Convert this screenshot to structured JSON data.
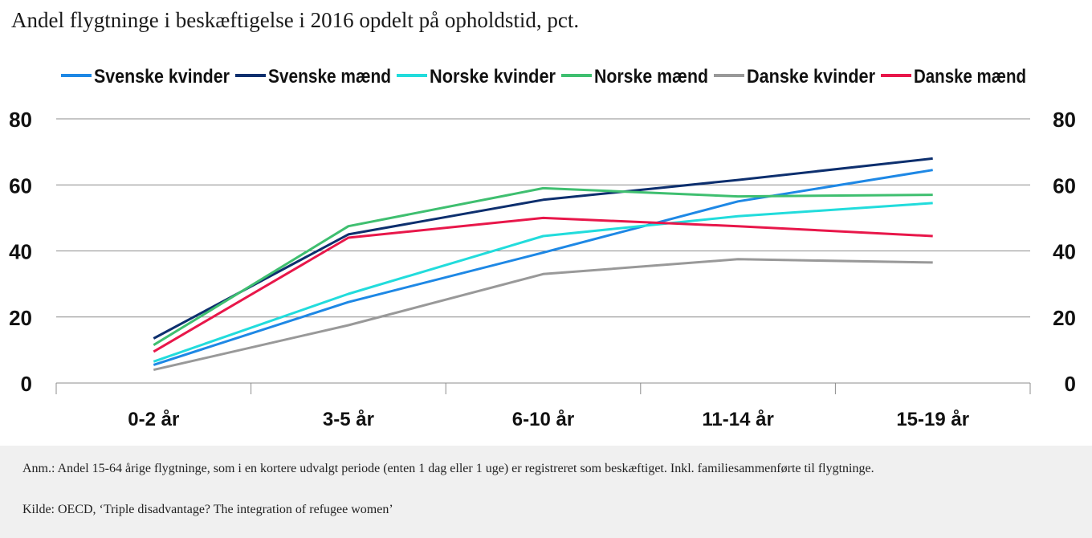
{
  "title": "Andel flygtninge i beskæftigelse i 2016 opdelt på opholdstid, pct.",
  "notes": {
    "anm": "Anm.: Andel 15-64 årige flygtninge, som i en kortere udvalgt periode (enten 1 dag eller 1 uge) er registreret som beskæftiget. Inkl. familiesammenførte til flygtninge.",
    "kilde": "Kilde: OECD, ‘Triple disadvantage? The integration of refugee women’"
  },
  "chart_data": {
    "type": "line",
    "title": "Andel flygtninge i beskæftigelse i 2016 opdelt på opholdstid, pct.",
    "xlabel": "",
    "ylabel": "",
    "categories": [
      "0-2 år",
      "3-5 år",
      "6-10 år",
      "11-14 år",
      "15-19 år"
    ],
    "ylim": [
      0,
      80
    ],
    "yticks": [
      0,
      20,
      40,
      60,
      80
    ],
    "grid": true,
    "legend_position": "top",
    "series": [
      {
        "name": "Svenske kvinder",
        "color": "#1e88e5",
        "values": [
          5.5,
          24.5,
          39.5,
          55,
          64.5
        ]
      },
      {
        "name": "Svenske mænd",
        "color": "#0d2f6e",
        "values": [
          13.5,
          45,
          55.5,
          61.5,
          68
        ]
      },
      {
        "name": "Norske kvinder",
        "color": "#22dcdc",
        "values": [
          6.5,
          27,
          44.5,
          50.5,
          54.5
        ]
      },
      {
        "name": "Norske mænd",
        "color": "#3fbf70",
        "values": [
          11.5,
          47.5,
          59,
          56.5,
          57
        ]
      },
      {
        "name": "Danske kvinder",
        "color": "#999999",
        "values": [
          4,
          17.5,
          33,
          37.5,
          36.5
        ]
      },
      {
        "name": "Danske mænd",
        "color": "#e8174a",
        "values": [
          9.5,
          44,
          50,
          47.5,
          44.5
        ]
      }
    ]
  }
}
